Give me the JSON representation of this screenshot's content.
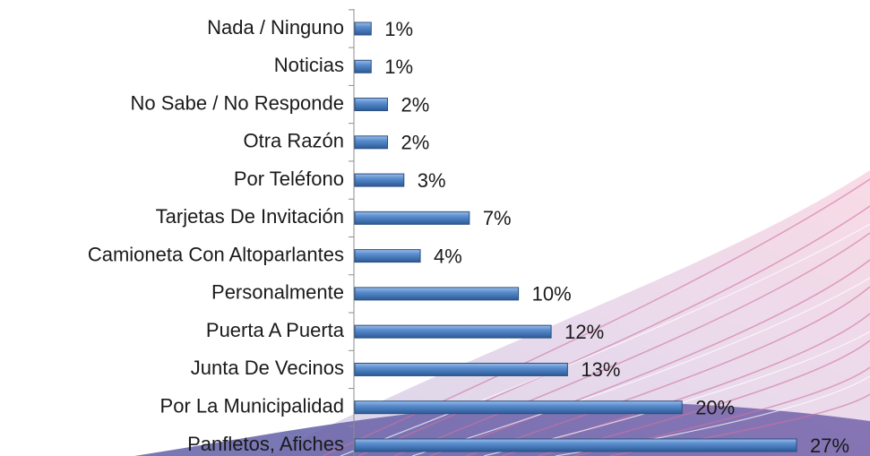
{
  "chart_data": {
    "type": "bar",
    "orientation": "horizontal",
    "color": "#4f81bd",
    "categories": [
      "Nada / Ninguno",
      "Noticias",
      "No Sabe / No Responde",
      "Otra Razón",
      "Por Teléfono",
      "Tarjetas De Invitación",
      "Camioneta Con Altoparlantes",
      "Personalmente",
      "Puerta A Puerta",
      "Junta De Vecinos",
      "Por La Municipalidad",
      "Panfletos, Afiches"
    ],
    "values": [
      1,
      1,
      2,
      2,
      3,
      7,
      4,
      10,
      12,
      13,
      20,
      27
    ],
    "value_labels": [
      "1%",
      "1%",
      "2%",
      "2%",
      "3%",
      "7%",
      "4%",
      "10%",
      "12%",
      "13%",
      "20%",
      "27%"
    ]
  }
}
